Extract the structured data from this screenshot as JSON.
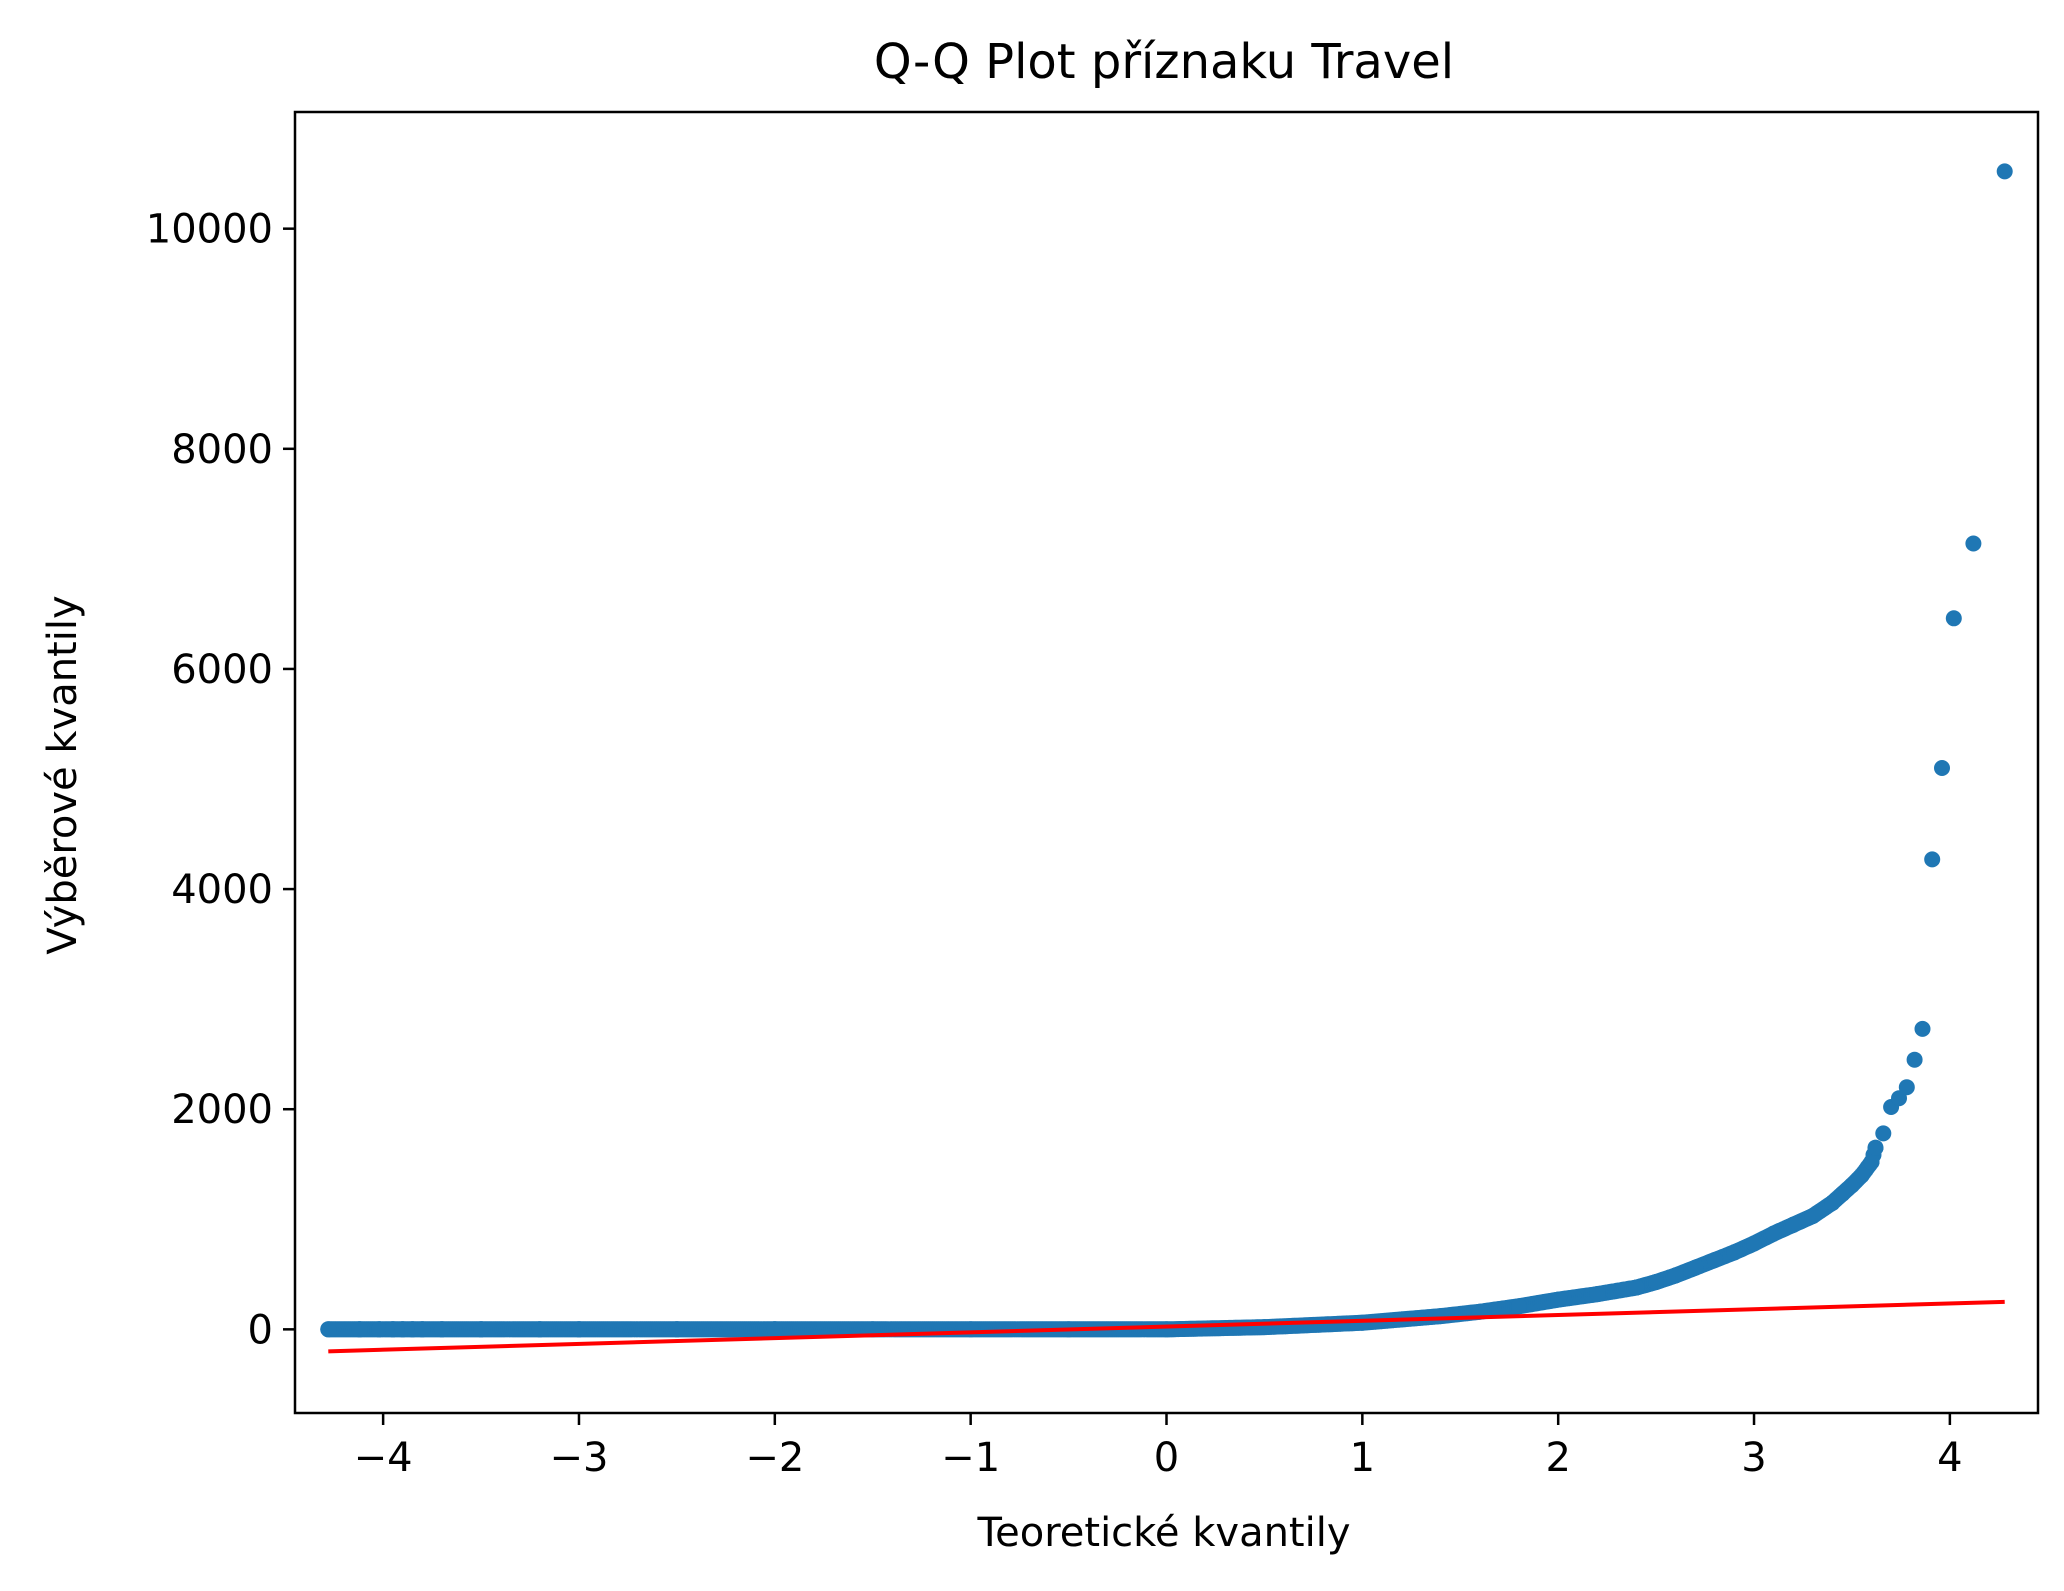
{
  "chart_data": {
    "type": "scatter",
    "title": "Q-Q Plot příznaku Travel",
    "xlabel": "Teoretické kvantily",
    "ylabel": "Výběrové kvantily",
    "xlim": [
      -4.45,
      4.45
    ],
    "ylim": [
      -760,
      11060
    ],
    "x_ticks": [
      -4,
      -3,
      -2,
      -1,
      0,
      1,
      2,
      3,
      4
    ],
    "x_tick_labels": [
      "−4",
      "−3",
      "−2",
      "−1",
      "0",
      "1",
      "2",
      "3",
      "4"
    ],
    "y_ticks": [
      0,
      2000,
      4000,
      6000,
      8000,
      10000
    ],
    "y_tick_labels": [
      "0",
      "2000",
      "4000",
      "6000",
      "8000",
      "10000"
    ],
    "grid": false,
    "series": [
      {
        "kind": "points",
        "color": "#1f77b4",
        "x": [
          -4.28,
          -4.12,
          -4.02,
          -3.95,
          -3.9,
          -3.85,
          -3.8,
          -3.7,
          -3.5,
          -3.2,
          -3.0,
          -2.5,
          -2.0,
          -1.5,
          -1.0,
          -0.5,
          0.0,
          0.5,
          1.0,
          1.2,
          1.4,
          1.6,
          1.8,
          2.0,
          2.2,
          2.4,
          2.5,
          2.6,
          2.7,
          2.8,
          2.9,
          3.0,
          3.1,
          3.2,
          3.3,
          3.4,
          3.45,
          3.5,
          3.55,
          3.6,
          3.62,
          3.66,
          3.7,
          3.74,
          3.78,
          3.82,
          3.86,
          3.91,
          3.96,
          4.02,
          4.12,
          4.28
        ],
        "y": [
          0,
          0,
          0,
          0,
          0,
          0,
          0,
          0,
          0,
          0,
          0,
          0,
          0,
          0,
          0,
          0,
          0,
          20,
          60,
          90,
          120,
          160,
          210,
          270,
          320,
          380,
          430,
          490,
          560,
          630,
          700,
          780,
          870,
          950,
          1030,
          1150,
          1230,
          1310,
          1400,
          1520,
          1650,
          1780,
          2020,
          2100,
          2200,
          2450,
          2730,
          4270,
          5100,
          6460,
          7140,
          10520
        ]
      },
      {
        "kind": "line",
        "color": "#ff0000",
        "x": [
          -4.28,
          4.28
        ],
        "y": [
          -200,
          250
        ]
      }
    ]
  }
}
